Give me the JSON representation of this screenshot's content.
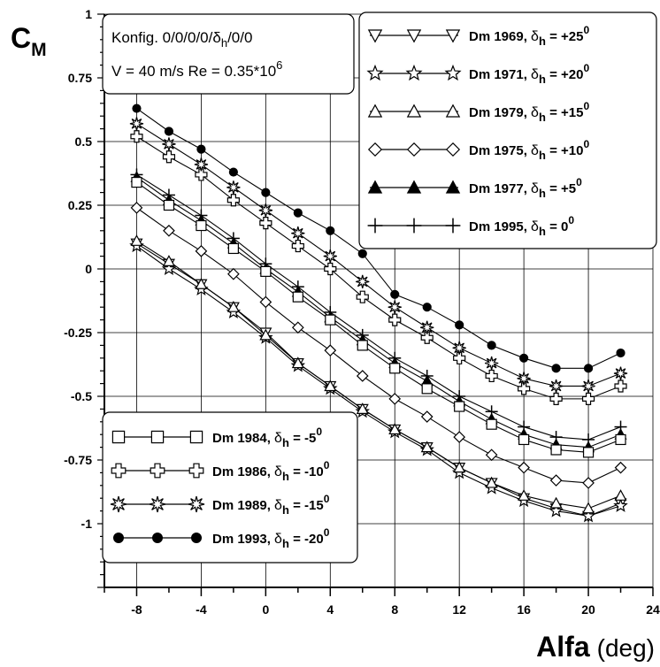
{
  "chart_data": {
    "type": "line",
    "ylabel": {
      "main": "C",
      "sub": "M"
    },
    "xlabel": {
      "main": "Alfa",
      "unit": "(deg)"
    },
    "xlim": [
      -10,
      24
    ],
    "ylim": [
      -1.25,
      1
    ],
    "xticks": [
      "-8",
      "-4",
      "0",
      "4",
      "8",
      "12",
      "16",
      "20",
      "24"
    ],
    "xtick_values": [
      -8,
      -4,
      0,
      4,
      8,
      12,
      16,
      20,
      24
    ],
    "yticks": [
      "1",
      "0.75",
      "0.5",
      "0.25",
      "0",
      "-0.25",
      "-0.5",
      "-0.75",
      "-1"
    ],
    "ytick_values": [
      1,
      0.75,
      0.5,
      0.25,
      0,
      -0.25,
      -0.5,
      -0.75,
      -1
    ],
    "grid": true,
    "info_box": {
      "line1": "Konfig. 0/0/0/0/δ",
      "line1_sub": "h",
      "line1_end": "/0/0",
      "line2": "V = 40 m/s Re = 0.35*10",
      "line2_sup": "6"
    },
    "x": [
      -8,
      -6,
      -4,
      -2,
      0,
      2,
      4,
      6,
      8,
      10,
      12,
      14,
      16,
      18,
      20,
      22
    ],
    "series": [
      {
        "name": "Dm 1969",
        "delta": "+25",
        "marker": "triangle-down",
        "values": [
          0.1,
          0.02,
          -0.06,
          -0.15,
          -0.25,
          -0.37,
          -0.46,
          -0.55,
          -0.63,
          -0.7,
          -0.78,
          -0.84,
          -0.9,
          -0.94,
          -0.97,
          -0.92
        ]
      },
      {
        "name": "Dm 1971",
        "delta": "+20",
        "marker": "star5",
        "values": [
          0.09,
          0.0,
          -0.08,
          -0.17,
          -0.27,
          -0.38,
          -0.47,
          -0.56,
          -0.64,
          -0.71,
          -0.8,
          -0.86,
          -0.91,
          -0.95,
          -0.97,
          -0.93
        ]
      },
      {
        "name": "Dm 1979",
        "delta": "+15",
        "marker": "triangle-up",
        "values": [
          0.11,
          0.03,
          -0.06,
          -0.15,
          -0.26,
          -0.37,
          -0.46,
          -0.55,
          -0.63,
          -0.7,
          -0.78,
          -0.84,
          -0.89,
          -0.92,
          -0.94,
          -0.89
        ]
      },
      {
        "name": "Dm 1975",
        "delta": "+10",
        "marker": "diamond",
        "values": [
          0.24,
          0.15,
          0.07,
          -0.02,
          -0.13,
          -0.23,
          -0.32,
          -0.42,
          -0.51,
          -0.58,
          -0.66,
          -0.73,
          -0.78,
          -0.83,
          -0.84,
          -0.78
        ]
      },
      {
        "name": "Dm 1977",
        "delta": "+5",
        "marker": "triangle-filled",
        "values": [
          0.36,
          0.27,
          0.19,
          0.1,
          0.0,
          -0.09,
          -0.19,
          -0.28,
          -0.37,
          -0.44,
          -0.52,
          -0.59,
          -0.65,
          -0.69,
          -0.7,
          -0.65
        ]
      },
      {
        "name": "Dm 1995",
        "delta": "0",
        "marker": "plus",
        "values": [
          0.37,
          0.29,
          0.21,
          0.12,
          0.02,
          -0.07,
          -0.17,
          -0.26,
          -0.35,
          -0.42,
          -0.5,
          -0.56,
          -0.62,
          -0.66,
          -0.67,
          -0.62
        ]
      },
      {
        "name": "Dm 1984",
        "delta": "-5",
        "marker": "square",
        "values": [
          0.34,
          0.25,
          0.17,
          0.08,
          -0.01,
          -0.11,
          -0.2,
          -0.3,
          -0.39,
          -0.47,
          -0.54,
          -0.61,
          -0.67,
          -0.71,
          -0.72,
          -0.67
        ]
      },
      {
        "name": "Dm 1986",
        "delta": "-10",
        "marker": "cross",
        "values": [
          0.52,
          0.44,
          0.37,
          0.27,
          0.18,
          0.09,
          0.0,
          -0.11,
          -0.2,
          -0.27,
          -0.35,
          -0.42,
          -0.47,
          -0.51,
          -0.51,
          -0.46
        ]
      },
      {
        "name": "Dm 1989",
        "delta": "-15",
        "marker": "star8",
        "values": [
          0.57,
          0.49,
          0.41,
          0.32,
          0.23,
          0.14,
          0.05,
          -0.05,
          -0.15,
          -0.23,
          -0.31,
          -0.37,
          -0.43,
          -0.46,
          -0.46,
          -0.41
        ]
      },
      {
        "name": "Dm 1993",
        "delta": "-20",
        "marker": "circle-filled",
        "values": [
          0.63,
          0.54,
          0.47,
          0.38,
          0.3,
          0.22,
          0.15,
          0.06,
          -0.1,
          -0.15,
          -0.22,
          -0.3,
          -0.35,
          -0.39,
          -0.39,
          -0.33
        ]
      }
    ],
    "legend_top_right": [
      0,
      1,
      2,
      3,
      4,
      5
    ],
    "legend_bottom_left": [
      6,
      7,
      8,
      9
    ],
    "legend_prefix": "δ",
    "legend_sub": "h",
    "legend_eq": " = ",
    "legend_sup": "0"
  }
}
